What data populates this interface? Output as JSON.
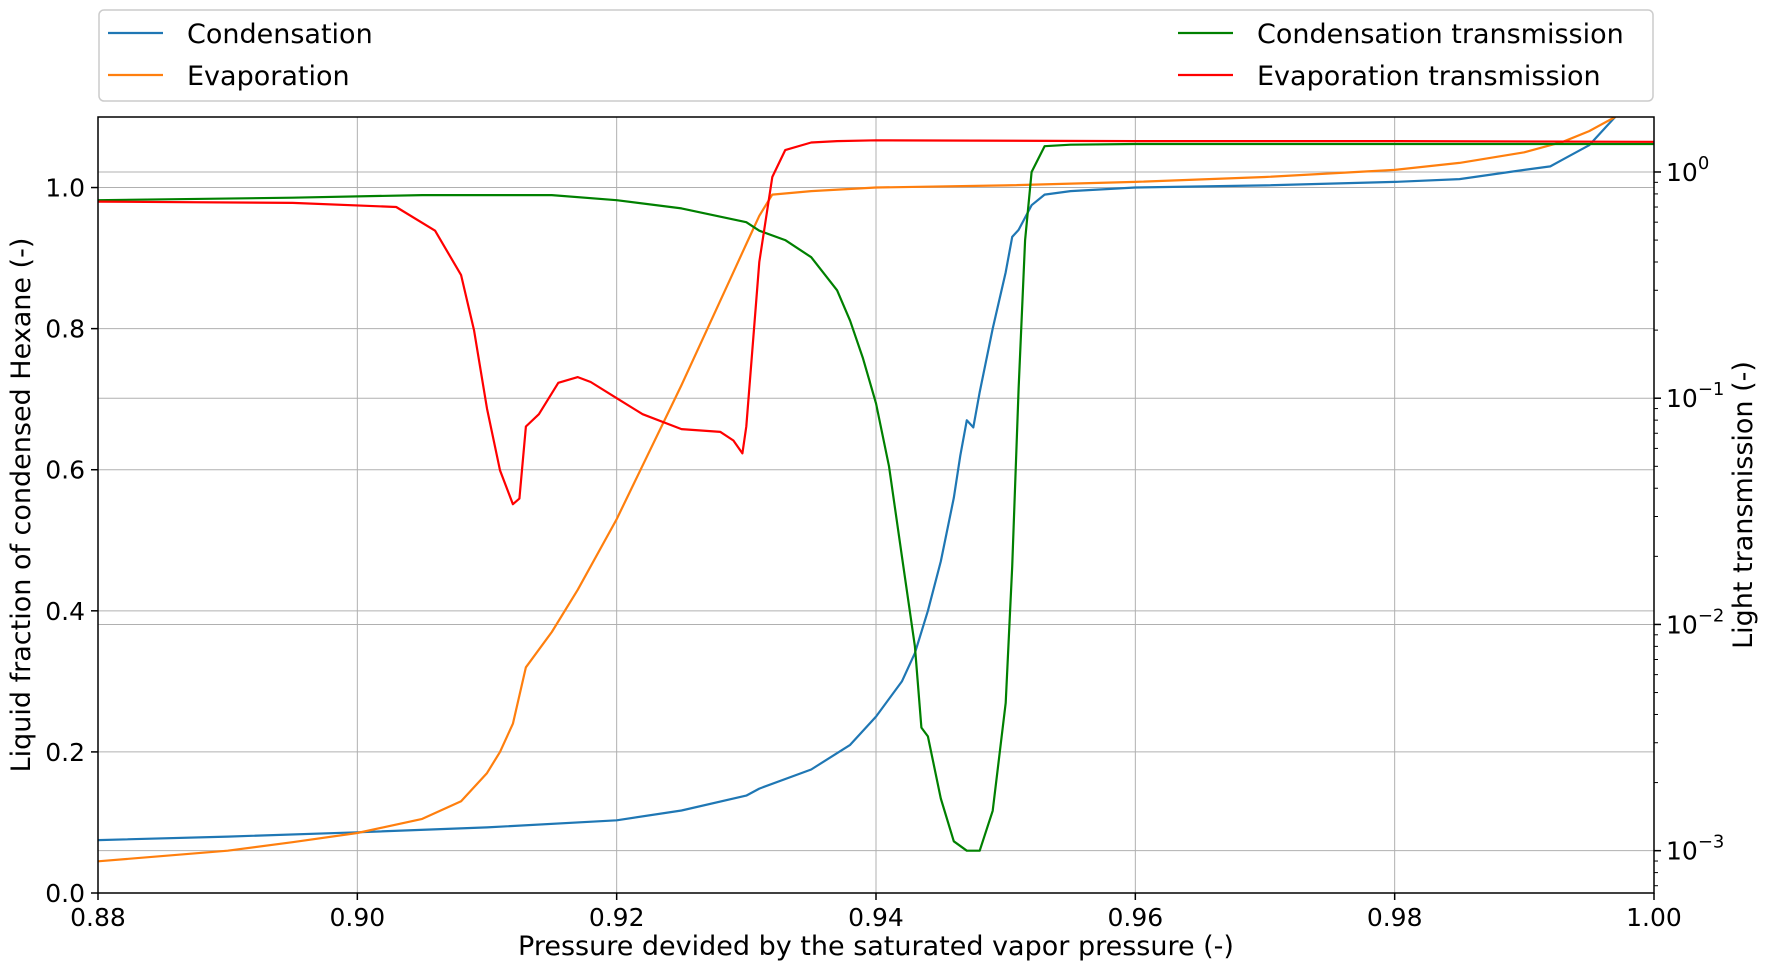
{
  "chart_data": {
    "type": "line",
    "xlabel": "Pressure devided by the saturated vapor pressure (-)",
    "ylabel": "Liquid fraction of condensed Hexane (-)",
    "y2label": "Light transmission (-)",
    "xlim": [
      0.88,
      1.0
    ],
    "ylim": [
      0.0,
      1.1
    ],
    "y2lim": [
      0.00065,
      1.75
    ],
    "y2scale": "log",
    "grid": true,
    "legend_position": "top",
    "x_ticks": [
      "0.88",
      "0.90",
      "0.92",
      "0.94",
      "0.96",
      "0.98",
      "1.00"
    ],
    "y_ticks": [
      "0.0",
      "0.2",
      "0.4",
      "0.6",
      "0.8",
      "1.0"
    ],
    "y2_ticks": [
      {
        "base": "10",
        "exp": "0"
      },
      {
        "base": "10",
        "exp": "−1"
      },
      {
        "base": "10",
        "exp": "−2"
      },
      {
        "base": "10",
        "exp": "−3"
      }
    ],
    "series": [
      {
        "name": "Condensation",
        "axis": "left",
        "color": "#1f77b4",
        "x": [
          0.88,
          0.89,
          0.9,
          0.91,
          0.92,
          0.925,
          0.93,
          0.931,
          0.935,
          0.938,
          0.94,
          0.942,
          0.943,
          0.944,
          0.945,
          0.946,
          0.9465,
          0.947,
          0.9475,
          0.948,
          0.949,
          0.95,
          0.9505,
          0.951,
          0.952,
          0.953,
          0.955,
          0.96,
          0.97,
          0.98,
          0.985,
          0.99,
          0.992,
          0.993,
          0.995,
          0.997
        ],
        "y": [
          0.075,
          0.08,
          0.086,
          0.093,
          0.103,
          0.117,
          0.138,
          0.148,
          0.175,
          0.21,
          0.25,
          0.3,
          0.34,
          0.4,
          0.47,
          0.56,
          0.62,
          0.67,
          0.66,
          0.71,
          0.8,
          0.88,
          0.93,
          0.94,
          0.975,
          0.99,
          0.995,
          1.0,
          1.003,
          1.008,
          1.012,
          1.025,
          1.03,
          1.04,
          1.06,
          1.1
        ]
      },
      {
        "name": "Evaporation",
        "axis": "left",
        "color": "#ff7f0e",
        "x": [
          0.88,
          0.89,
          0.895,
          0.9,
          0.905,
          0.908,
          0.91,
          0.911,
          0.912,
          0.9125,
          0.913,
          0.915,
          0.917,
          0.92,
          0.925,
          0.929,
          0.93,
          0.931,
          0.932,
          0.935,
          0.94,
          0.95,
          0.96,
          0.97,
          0.98,
          0.985,
          0.99,
          0.993,
          0.995,
          0.997
        ],
        "y": [
          0.045,
          0.06,
          0.072,
          0.085,
          0.105,
          0.13,
          0.17,
          0.2,
          0.24,
          0.28,
          0.32,
          0.37,
          0.43,
          0.53,
          0.72,
          0.88,
          0.92,
          0.96,
          0.99,
          0.995,
          1.0,
          1.003,
          1.008,
          1.015,
          1.025,
          1.035,
          1.05,
          1.065,
          1.08,
          1.1
        ]
      },
      {
        "name": "Condensation transmission",
        "axis": "right",
        "color": "#008000",
        "x": [
          0.88,
          0.895,
          0.905,
          0.915,
          0.92,
          0.925,
          0.93,
          0.931,
          0.933,
          0.935,
          0.937,
          0.938,
          0.939,
          0.94,
          0.941,
          0.942,
          0.943,
          0.9435,
          0.944,
          0.945,
          0.946,
          0.947,
          0.948,
          0.949,
          0.95,
          0.9505,
          0.951,
          0.9515,
          0.952,
          0.953,
          0.955,
          0.96,
          0.97,
          0.98,
          0.99,
          1.0
        ],
        "y": [
          0.75,
          0.77,
          0.79,
          0.79,
          0.75,
          0.69,
          0.6,
          0.55,
          0.5,
          0.42,
          0.3,
          0.22,
          0.15,
          0.095,
          0.05,
          0.02,
          0.008,
          0.0035,
          0.0032,
          0.0017,
          0.0011,
          0.001,
          0.001,
          0.0015,
          0.0045,
          0.018,
          0.11,
          0.5,
          1.0,
          1.3,
          1.32,
          1.33,
          1.33,
          1.33,
          1.33,
          1.33
        ]
      },
      {
        "name": "Evaporation transmission",
        "axis": "right",
        "color": "#ff0000",
        "x": [
          0.88,
          0.895,
          0.903,
          0.906,
          0.908,
          0.909,
          0.91,
          0.911,
          0.912,
          0.9125,
          0.913,
          0.914,
          0.9155,
          0.917,
          0.918,
          0.92,
          0.922,
          0.925,
          0.928,
          0.929,
          0.9297,
          0.93,
          0.931,
          0.932,
          0.933,
          0.935,
          0.937,
          0.94,
          0.96,
          0.98,
          1.0
        ],
        "y": [
          0.74,
          0.73,
          0.7,
          0.55,
          0.35,
          0.2,
          0.09,
          0.048,
          0.034,
          0.036,
          0.075,
          0.085,
          0.117,
          0.124,
          0.118,
          0.1,
          0.085,
          0.073,
          0.071,
          0.065,
          0.057,
          0.075,
          0.4,
          0.95,
          1.25,
          1.35,
          1.37,
          1.38,
          1.37,
          1.37,
          1.36
        ]
      }
    ]
  }
}
